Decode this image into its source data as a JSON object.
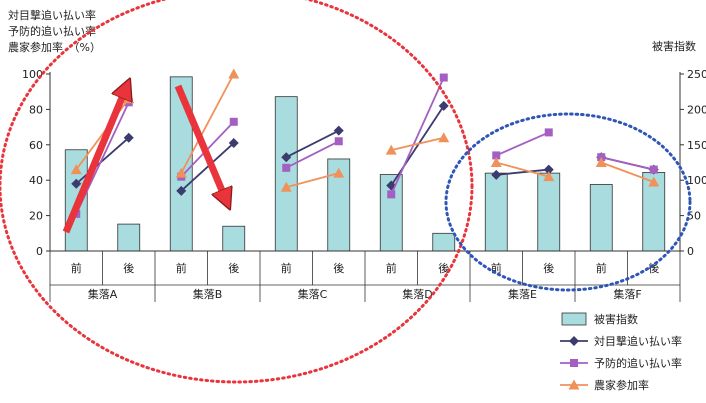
{
  "chart_data": {
    "type": "bar",
    "left_axis_title_lines": [
      "対目撃追い払い率",
      "予防的追い払い率",
      "農家参加率　（%）"
    ],
    "right_axis_title": "被害指数",
    "ylim_left": [
      0,
      100
    ],
    "ylim_right": [
      0,
      250
    ],
    "left_ticks": [
      0,
      20,
      40,
      60,
      80,
      100
    ],
    "right_ticks": [
      0,
      50,
      100,
      150,
      200,
      250
    ],
    "grid": false,
    "legend_position": "bottom-right",
    "groups": [
      "集落A",
      "集落B",
      "集落C",
      "集落D",
      "集落E",
      "集落F"
    ],
    "sub_categories": [
      "前",
      "後"
    ],
    "bar_series": {
      "name": "被害指数",
      "axis": "right",
      "color": "#a8dcdf",
      "values": [
        143,
        38,
        246,
        35,
        218,
        130,
        108,
        25,
        110,
        110,
        94,
        111
      ]
    },
    "series": [
      {
        "name": "対目撃追い払い率",
        "color": "#3b3b6e",
        "marker": "diamond",
        "values": [
          [
            38,
            64
          ],
          [
            34,
            61
          ],
          [
            53,
            68
          ],
          [
            37,
            82
          ],
          [
            43,
            46
          ],
          [
            53,
            46
          ]
        ]
      },
      {
        "name": "予防的追い払い率",
        "color": "#a45fc2",
        "marker": "square",
        "values": [
          [
            21,
            84
          ],
          [
            42,
            73
          ],
          [
            47,
            62
          ],
          [
            32,
            98
          ],
          [
            54,
            67
          ],
          [
            53,
            46
          ]
        ]
      },
      {
        "name": "農家参加率",
        "color": "#f0915a",
        "marker": "triangle",
        "values": [
          [
            46,
            86
          ],
          [
            44,
            100
          ],
          [
            36,
            44
          ],
          [
            57,
            64
          ],
          [
            50,
            42
          ],
          [
            50,
            39
          ]
        ]
      }
    ]
  }
}
